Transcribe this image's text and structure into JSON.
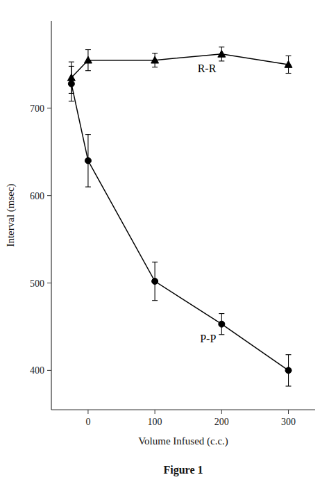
{
  "chart_data": {
    "type": "line",
    "x": [
      -25,
      0,
      100,
      200,
      300
    ],
    "series": [
      {
        "name": "R-R",
        "color": "#000000",
        "marker": "triangle",
        "values": [
          735,
          755,
          755,
          762,
          750
        ],
        "errors": [
          18,
          12,
          8,
          8,
          10
        ]
      },
      {
        "name": "P-P",
        "color": "#000000",
        "marker": "circle",
        "values": [
          728,
          640,
          502,
          453,
          400
        ],
        "errors": [
          20,
          30,
          22,
          12,
          18
        ]
      }
    ],
    "x_label": "Volume  Infused  (c.c.)",
    "y_label": "Interval (msec)",
    "annotations": [
      "Figure 1"
    ],
    "xlim": [
      -55,
      340
    ],
    "ylim": [
      355,
      800
    ],
    "xticks": [
      0,
      100,
      200,
      300
    ],
    "yticks": [
      400,
      500,
      600,
      700
    ],
    "grid": false
  }
}
